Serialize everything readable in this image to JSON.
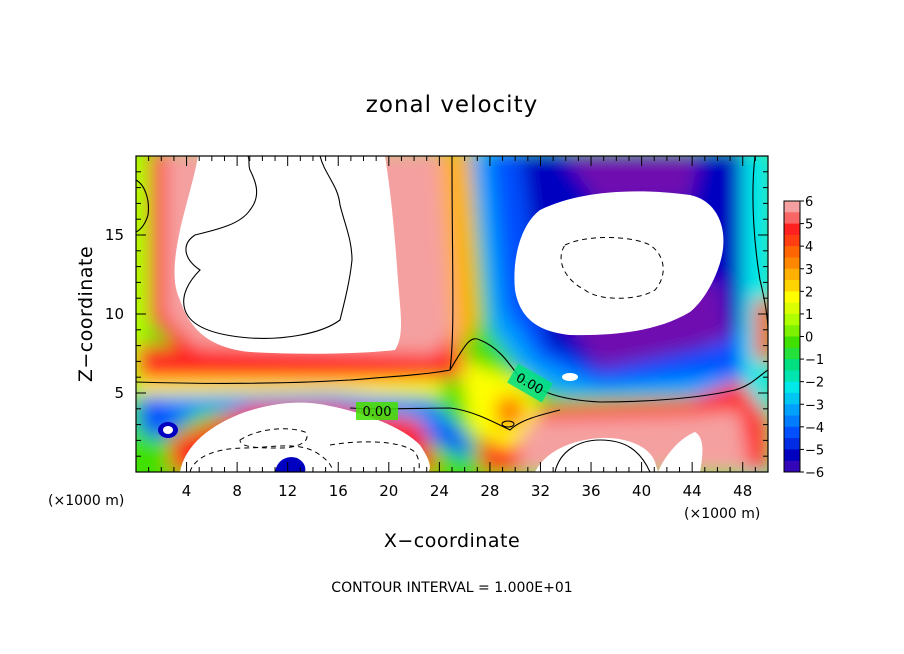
{
  "chart_data": {
    "type": "heatmap",
    "title": "zonal velocity",
    "xlabel": "X−coordinate",
    "ylabel": "Z−coordinate",
    "x_unit_left": "(×1000 m)",
    "x_unit_right": "(×1000 m)",
    "footer": "CONTOUR INTERVAL = 1.000E+01",
    "xlim": [
      0,
      50
    ],
    "ylim": [
      0,
      20
    ],
    "x_ticks": [
      4,
      8,
      12,
      16,
      20,
      24,
      28,
      32,
      36,
      40,
      44,
      48
    ],
    "x_tick_labels": [
      "4",
      "8",
      "12",
      "16",
      "20",
      "24",
      "28",
      "32",
      "36",
      "40",
      "44",
      "48"
    ],
    "y_ticks": [
      5,
      10,
      15
    ],
    "y_tick_labels": [
      "5",
      "10",
      "15"
    ],
    "colorbar": {
      "levels": [
        6,
        5,
        4,
        3,
        2,
        1,
        0,
        -1,
        -2,
        -3,
        -4,
        -5,
        -6
      ],
      "labels": [
        "6",
        "5",
        "4",
        "3",
        "2",
        "1",
        "0",
        "−1",
        "−2",
        "−3",
        "−4",
        "−5",
        "−6"
      ],
      "colors": [
        "#f5a0a0",
        "#ff2020",
        "#ff6600",
        "#ffb000",
        "#ffff00",
        "#b0ff00",
        "#40e000",
        "#00e080",
        "#00e8e8",
        "#00a0ff",
        "#0050ff",
        "#0000c0",
        "#7010b0"
      ]
    },
    "saturated_high_color": "#ffffff",
    "saturated_low_color": "#ffffff",
    "contour_labels": [
      {
        "text": "0.00",
        "x": 18.5,
        "z": 3.7
      },
      {
        "text": "0.00",
        "x": 30.0,
        "z": 5.5
      }
    ]
  }
}
